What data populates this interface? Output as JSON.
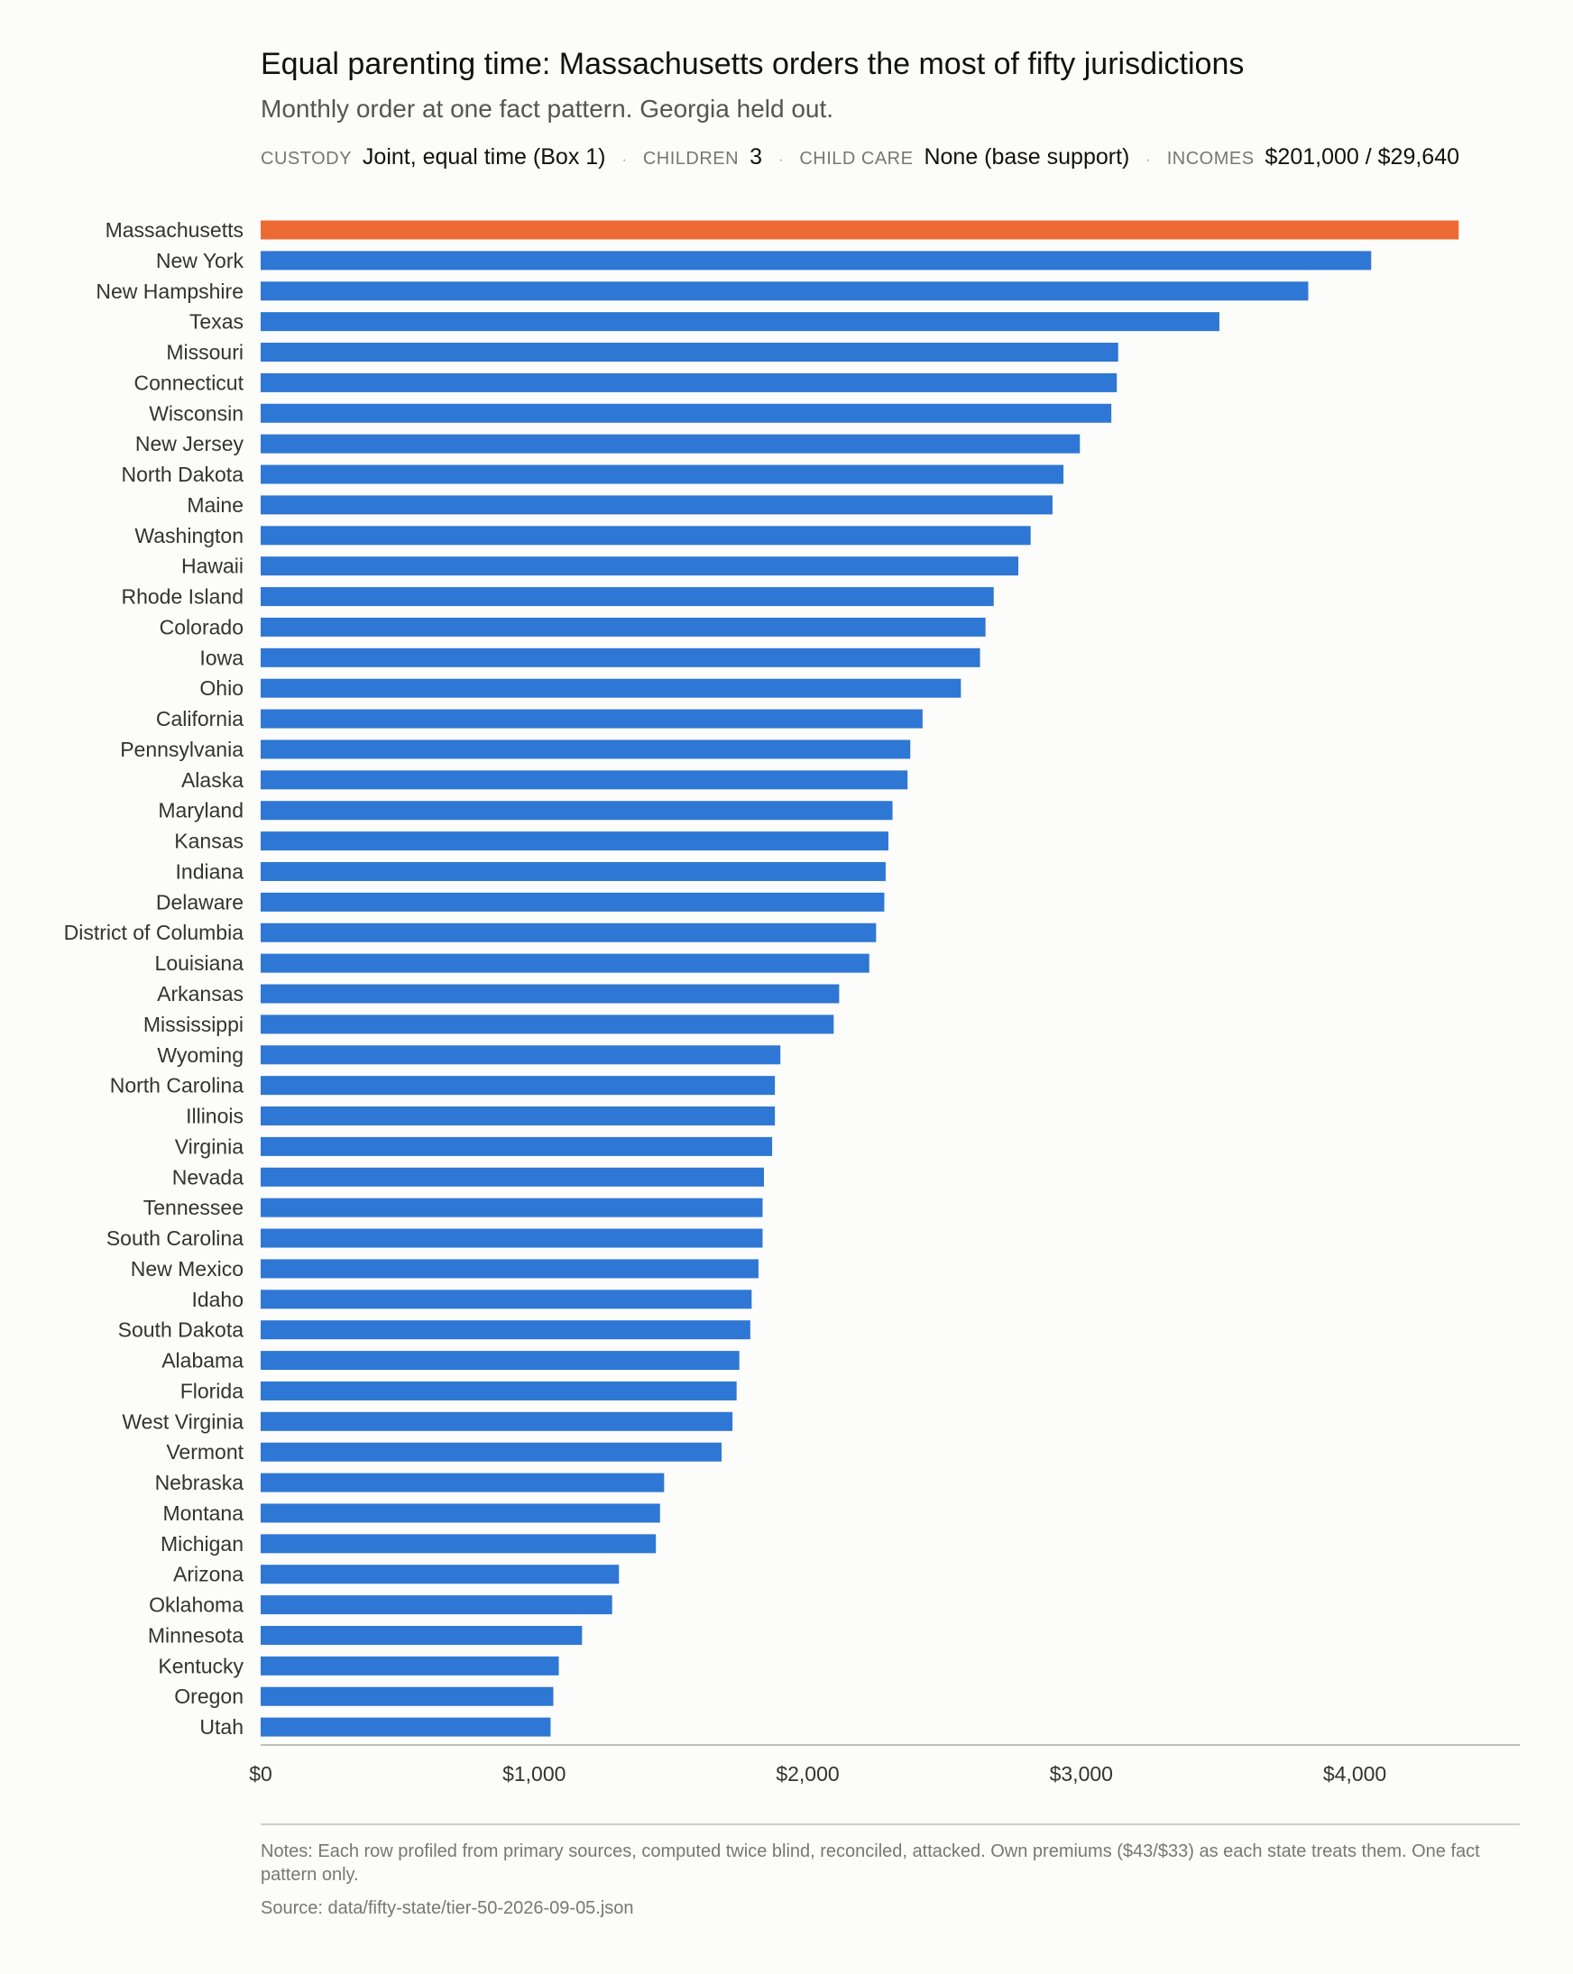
{
  "header": {
    "title": "Equal parenting time: Massachusetts orders the most of fifty jurisdictions",
    "subtitle": "Monthly order at one fact pattern. Georgia held out."
  },
  "meta": {
    "custody_label": "CUSTODY",
    "custody_value": "Joint, equal time (Box 1)",
    "children_label": "CHILDREN",
    "children_value": "3",
    "childcare_label": "CHILD CARE",
    "childcare_value": "None (base support)",
    "incomes_label": "INCOMES",
    "incomes_value": "$201,000 / $29,640",
    "separator": "·"
  },
  "chart_data": {
    "type": "bar",
    "orientation": "horizontal",
    "xlim": [
      0,
      4600
    ],
    "xticks": [
      {
        "value": 0,
        "label": "$0"
      },
      {
        "value": 1000,
        "label": "$1,000"
      },
      {
        "value": 2000,
        "label": "$2,000"
      },
      {
        "value": 3000,
        "label": "$3,000"
      },
      {
        "value": 4000,
        "label": "$4,000"
      }
    ],
    "grid": false,
    "colors": {
      "bar": "#2f77d4",
      "highlight": "#ee6a35"
    },
    "highlight": "Massachusetts",
    "categories": [
      "Massachusetts",
      "New York",
      "New Hampshire",
      "Texas",
      "Missouri",
      "Connecticut",
      "Wisconsin",
      "New Jersey",
      "North Dakota",
      "Maine",
      "Washington",
      "Hawaii",
      "Rhode Island",
      "Colorado",
      "Iowa",
      "Ohio",
      "California",
      "Pennsylvania",
      "Alaska",
      "Maryland",
      "Kansas",
      "Indiana",
      "Delaware",
      "District of Columbia",
      "Louisiana",
      "Arkansas",
      "Mississippi",
      "Wyoming",
      "North Carolina",
      "Illinois",
      "Virginia",
      "Nevada",
      "Tennessee",
      "South Carolina",
      "New Mexico",
      "Idaho",
      "South Dakota",
      "Alabama",
      "Florida",
      "West Virginia",
      "Vermont",
      "Nebraska",
      "Montana",
      "Michigan",
      "Arizona",
      "Oklahoma",
      "Minnesota",
      "Kentucky",
      "Oregon",
      "Utah"
    ],
    "values": [
      4380,
      4060,
      3830,
      3505,
      3135,
      3130,
      3110,
      2995,
      2935,
      2895,
      2815,
      2770,
      2680,
      2650,
      2630,
      2560,
      2420,
      2375,
      2365,
      2310,
      2295,
      2285,
      2280,
      2250,
      2225,
      2115,
      2095,
      1900,
      1880,
      1880,
      1870,
      1840,
      1835,
      1835,
      1820,
      1795,
      1790,
      1750,
      1740,
      1725,
      1685,
      1475,
      1460,
      1445,
      1310,
      1285,
      1175,
      1090,
      1070,
      1060
    ]
  },
  "footer": {
    "notes": "Notes: Each row profiled from primary sources, computed twice blind, reconciled, attacked. Own premiums ($43/$33) as each state treats them. One fact pattern only.",
    "source": "Source: data/fifty-state/tier-50-2026-09-05.json"
  }
}
